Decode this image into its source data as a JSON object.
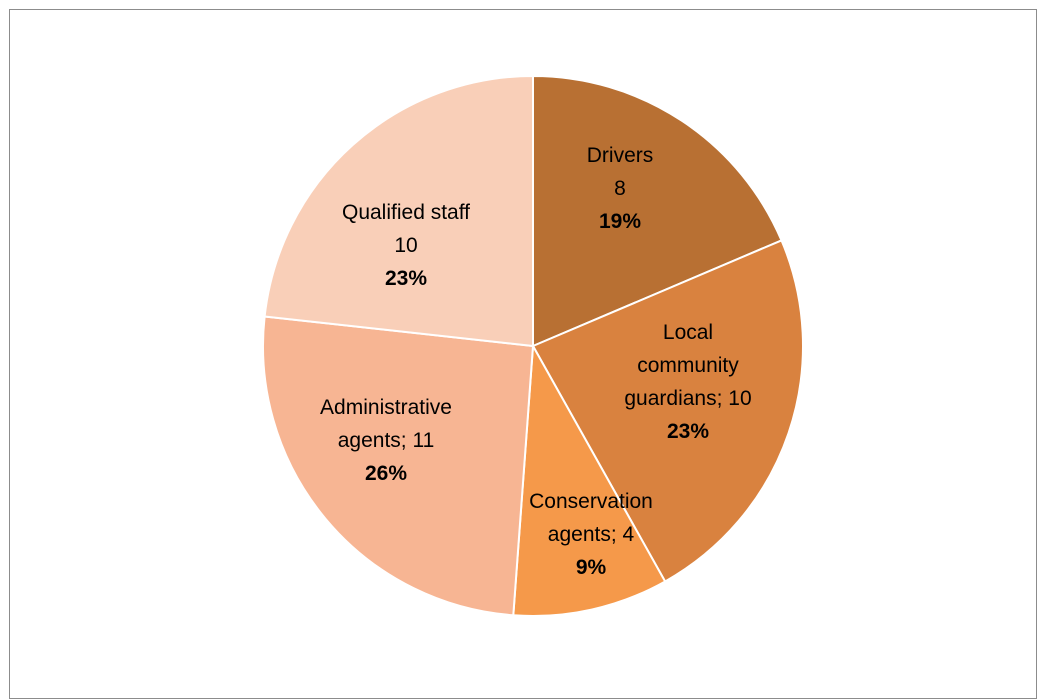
{
  "chart_data": {
    "type": "pie",
    "start_angle_deg": 0,
    "direction": "clockwise",
    "slices": [
      {
        "name": "Drivers",
        "value": 8,
        "label_lines": [
          "Drivers",
          "8"
        ],
        "percent": "19%",
        "color": "#B87033"
      },
      {
        "name": "Local community guardians",
        "value": 10,
        "label_lines": [
          "Local",
          "community",
          "guardians; 10"
        ],
        "percent": "23%",
        "color": "#D9823F"
      },
      {
        "name": "Conservation agents",
        "value": 4,
        "label_lines": [
          "Conservation",
          "agents; 4"
        ],
        "percent": "9%",
        "color": "#F5994A"
      },
      {
        "name": "Administrative agents",
        "value": 11,
        "label_lines": [
          "Administrative",
          "agents; 11"
        ],
        "percent": "26%",
        "color": "#F7B593"
      },
      {
        "name": "Qualified staff",
        "value": 10,
        "label_lines": [
          "Qualified staff",
          "10"
        ],
        "percent": "23%",
        "color": "#F9CFB8"
      }
    ],
    "slice_border_color": "#FFFFFF"
  }
}
